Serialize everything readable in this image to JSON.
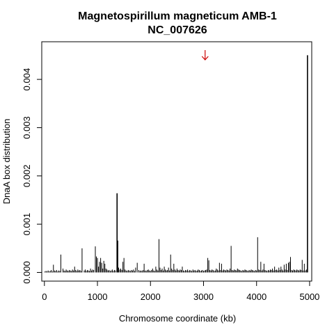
{
  "chart_data": {
    "type": "bar",
    "title": "Magnetospirillum magneticum AMB-1",
    "subtitle": "NC_007626",
    "xlabel": "Chromosome coordinate (kb)",
    "ylabel": "DnaA box distribution",
    "xlim": [
      -50,
      5040
    ],
    "ylim": [
      -0.00018,
      0.00478
    ],
    "xticks": [
      0,
      1000,
      2000,
      3000,
      4000,
      5000
    ],
    "yticks": [
      0.0,
      0.001,
      0.002,
      0.003,
      0.004
    ],
    "ytick_labels": [
      "0.000",
      "0.001",
      "0.002",
      "0.003",
      "0.004"
    ],
    "grid": false,
    "bar_color": "#000000",
    "marker": {
      "x": 3030,
      "color": "#cc0000",
      "icon": "down-arrow"
    },
    "x": [
      10,
      30,
      50,
      70,
      90,
      110,
      130,
      150,
      170,
      190,
      210,
      230,
      250,
      270,
      290,
      310,
      350,
      370,
      390,
      410,
      430,
      450,
      470,
      490,
      510,
      530,
      550,
      570,
      590,
      610,
      630,
      650,
      670,
      690,
      710,
      750,
      770,
      790,
      810,
      830,
      850,
      870,
      890,
      910,
      930,
      960,
      980,
      1000,
      1020,
      1040,
      1060,
      1080,
      1100,
      1120,
      1140,
      1160,
      1180,
      1200,
      1220,
      1240,
      1260,
      1280,
      1300,
      1320,
      1340,
      1370,
      1385,
      1400,
      1420,
      1440,
      1460,
      1480,
      1500,
      1520,
      1540,
      1560,
      1580,
      1600,
      1620,
      1640,
      1660,
      1680,
      1700,
      1720,
      1750,
      1780,
      1800,
      1820,
      1840,
      1860,
      1880,
      1900,
      1920,
      1940,
      1960,
      1980,
      2000,
      2020,
      2040,
      2060,
      2080,
      2100,
      2120,
      2140,
      2160,
      2180,
      2200,
      2220,
      2240,
      2260,
      2280,
      2300,
      2320,
      2340,
      2360,
      2380,
      2400,
      2420,
      2440,
      2460,
      2480,
      2500,
      2520,
      2540,
      2560,
      2580,
      2600,
      2620,
      2640,
      2660,
      2680,
      2700,
      2720,
      2740,
      2760,
      2780,
      2800,
      2820,
      2840,
      2860,
      2880,
      2900,
      2920,
      2940,
      2960,
      2980,
      3000,
      3020,
      3040,
      3060,
      3080,
      3100,
      3120,
      3140,
      3160,
      3180,
      3200,
      3220,
      3240,
      3260,
      3280,
      3300,
      3320,
      3340,
      3360,
      3380,
      3400,
      3420,
      3440,
      3460,
      3480,
      3500,
      3520,
      3540,
      3560,
      3580,
      3600,
      3620,
      3640,
      3660,
      3680,
      3700,
      3720,
      3740,
      3760,
      3780,
      3800,
      3820,
      3840,
      3860,
      3880,
      3900,
      3920,
      3940,
      3960,
      3980,
      4000,
      4020,
      4040,
      4060,
      4080,
      4100,
      4120,
      4140,
      4160,
      4180,
      4200,
      4220,
      4240,
      4260,
      4280,
      4300,
      4320,
      4340,
      4360,
      4380,
      4400,
      4420,
      4440,
      4460,
      4480,
      4500,
      4520,
      4540,
      4560,
      4580,
      4600,
      4620,
      4640,
      4660,
      4680,
      4700,
      4720,
      4740,
      4760,
      4780,
      4800,
      4820,
      4840,
      4860,
      4880,
      4900,
      4920,
      4940,
      4960
    ],
    "values": [
      2e-05,
      3e-05,
      2e-05,
      4e-05,
      2e-05,
      3e-05,
      5e-05,
      2e-05,
      0.00016,
      4e-05,
      3e-05,
      5e-05,
      2e-05,
      4e-05,
      3e-05,
      0.00037,
      8e-05,
      4e-05,
      3e-05,
      6e-05,
      4e-05,
      3e-05,
      5e-05,
      4e-05,
      3e-05,
      6e-05,
      4e-05,
      0.00012,
      5e-05,
      3e-05,
      6e-05,
      4e-05,
      5e-05,
      3e-05,
      0.0005,
      4e-05,
      6e-05,
      3e-05,
      5e-05,
      4e-05,
      3e-05,
      8e-05,
      4e-05,
      6e-05,
      5e-05,
      0.00054,
      0.00033,
      0.0003,
      0.00012,
      0.00022,
      0.0003,
      0.0002,
      8e-05,
      0.00024,
      0.00018,
      8e-05,
      6e-05,
      4e-05,
      5e-05,
      3e-05,
      4e-05,
      6e-05,
      3e-05,
      5e-05,
      4e-05,
      0.00164,
      0.00066,
      0.0001,
      6e-05,
      8e-05,
      5e-05,
      0.00022,
      0.0003,
      6e-05,
      4e-05,
      3e-05,
      5e-05,
      4e-05,
      3e-05,
      5e-05,
      4e-05,
      6e-05,
      3e-05,
      0.0001,
      0.0002,
      5e-05,
      3e-05,
      4e-05,
      3e-05,
      5e-05,
      0.00018,
      4e-05,
      3e-05,
      5e-05,
      6e-05,
      4e-05,
      3e-05,
      5e-05,
      8e-05,
      4e-05,
      3e-05,
      0.00012,
      6e-05,
      4e-05,
      0.00069,
      0.0001,
      5e-05,
      8e-05,
      4e-05,
      0.00012,
      6e-05,
      4e-05,
      5e-05,
      0.0001,
      4e-05,
      0.00037,
      8e-05,
      5e-05,
      0.00018,
      6e-05,
      4e-05,
      8e-05,
      5e-05,
      4e-05,
      6e-05,
      5e-05,
      0.00012,
      4e-05,
      3e-05,
      5e-05,
      4e-05,
      6e-05,
      3e-05,
      5e-05,
      4e-05,
      3e-05,
      6e-05,
      4e-05,
      5e-05,
      3e-05,
      4e-05,
      6e-05,
      5e-05,
      3e-05,
      4e-05,
      5e-05,
      3e-05,
      4e-05,
      5e-05,
      6e-05,
      0.0003,
      0.00025,
      5e-05,
      4e-05,
      6e-05,
      5e-05,
      3e-05,
      4e-05,
      8e-05,
      6e-05,
      4e-05,
      0.0002,
      5e-05,
      0.00018,
      4e-05,
      6e-05,
      5e-05,
      4e-05,
      6e-05,
      5e-05,
      4e-05,
      8e-05,
      0.00055,
      5e-05,
      4e-05,
      6e-05,
      5e-05,
      4e-05,
      8e-05,
      6e-05,
      5e-05,
      4e-05,
      3e-05,
      5e-05,
      4e-05,
      6e-05,
      5e-05,
      4e-05,
      3e-05,
      5e-05,
      4e-05,
      6e-05,
      5e-05,
      4e-05,
      3e-05,
      5e-05,
      4e-05,
      0.00073,
      6e-05,
      5e-05,
      0.00022,
      4e-05,
      6e-05,
      0.00018,
      5e-05,
      4e-05,
      3e-05,
      5e-05,
      4e-05,
      6e-05,
      5e-05,
      8e-05,
      4e-05,
      0.00012,
      5e-05,
      6e-05,
      4e-05,
      0.0001,
      5e-05,
      0.00012,
      6e-05,
      4e-05,
      0.00016,
      6e-05,
      0.00018,
      5e-05,
      0.0002,
      0.00022,
      0.00032,
      5e-05,
      4e-05,
      6e-05,
      5e-05,
      4e-05,
      6e-05,
      5e-05,
      4e-05,
      6e-05,
      5e-05,
      0.00026,
      4e-05,
      0.00018,
      4e-05,
      6e-05,
      0.0045
    ]
  }
}
